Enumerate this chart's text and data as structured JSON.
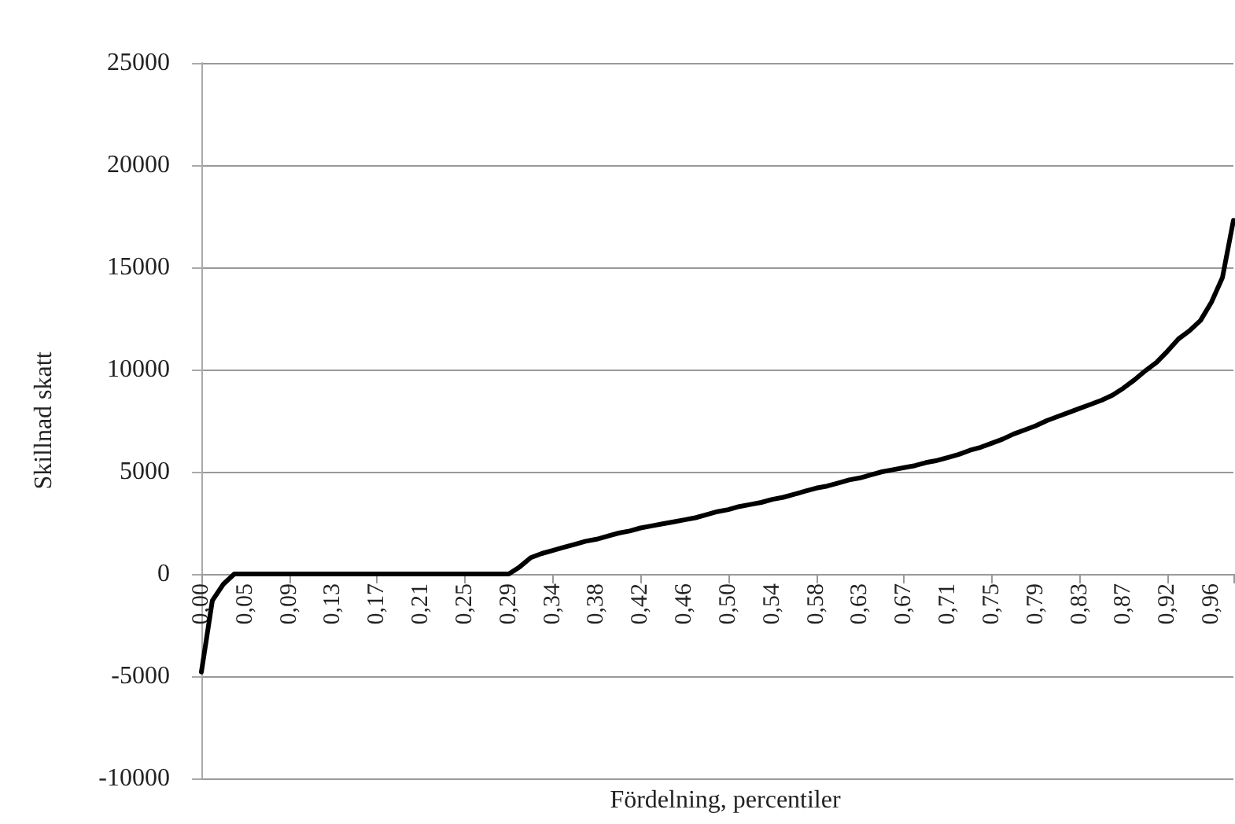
{
  "chart_data": {
    "type": "line",
    "xlabel": "Fördelning, percentiler",
    "ylabel": "Skillnad skatt",
    "categories": [
      "0,00",
      null,
      null,
      null,
      "0,05",
      null,
      null,
      null,
      "0,09",
      null,
      null,
      null,
      "0,13",
      null,
      null,
      null,
      "0,17",
      null,
      null,
      null,
      "0,21",
      null,
      null,
      null,
      "0,25",
      null,
      null,
      null,
      "0,29",
      null,
      null,
      null,
      "0,34",
      null,
      null,
      null,
      "0,38",
      null,
      null,
      null,
      "0,42",
      null,
      null,
      null,
      "0,46",
      null,
      null,
      null,
      "0,50",
      null,
      null,
      null,
      "0,54",
      null,
      null,
      null,
      "0,58",
      null,
      null,
      null,
      "0,63",
      null,
      null,
      null,
      "0,67",
      null,
      null,
      null,
      "0,71",
      null,
      null,
      null,
      "0,75",
      null,
      null,
      null,
      "0,79",
      null,
      null,
      null,
      "0,83",
      null,
      null,
      null,
      "0,87",
      null,
      null,
      null,
      "0,92",
      null,
      null,
      null,
      "0,96",
      null,
      null
    ],
    "series": [
      {
        "color": "#000000",
        "values": [
          -4800,
          -1300,
          -500,
          0,
          0,
          0,
          0,
          0,
          0,
          0,
          0,
          0,
          0,
          0,
          0,
          0,
          0,
          0,
          0,
          0,
          0,
          0,
          0,
          0,
          0,
          0,
          0,
          0,
          0,
          350,
          800,
          1000,
          1150,
          1300,
          1450,
          1600,
          1700,
          1850,
          2000,
          2100,
          2250,
          2350,
          2450,
          2550,
          2650,
          2750,
          2900,
          3050,
          3150,
          3300,
          3400,
          3500,
          3650,
          3750,
          3900,
          4050,
          4200,
          4300,
          4450,
          4600,
          4700,
          4850,
          5000,
          5100,
          5200,
          5300,
          5450,
          5550,
          5700,
          5850,
          6050,
          6200,
          6400,
          6600,
          6850,
          7050,
          7250,
          7500,
          7700,
          7900,
          8100,
          8300,
          8500,
          8750,
          9100,
          9500,
          9950,
          10350,
          10900,
          11500,
          11900,
          12400,
          13300,
          14500,
          17300
        ]
      }
    ],
    "ylim": [
      -10000,
      25000
    ],
    "yticks": [
      -10000,
      -5000,
      0,
      5000,
      10000,
      15000,
      20000,
      25000
    ],
    "grid": "y",
    "marker": "none",
    "line_style": "solid"
  }
}
